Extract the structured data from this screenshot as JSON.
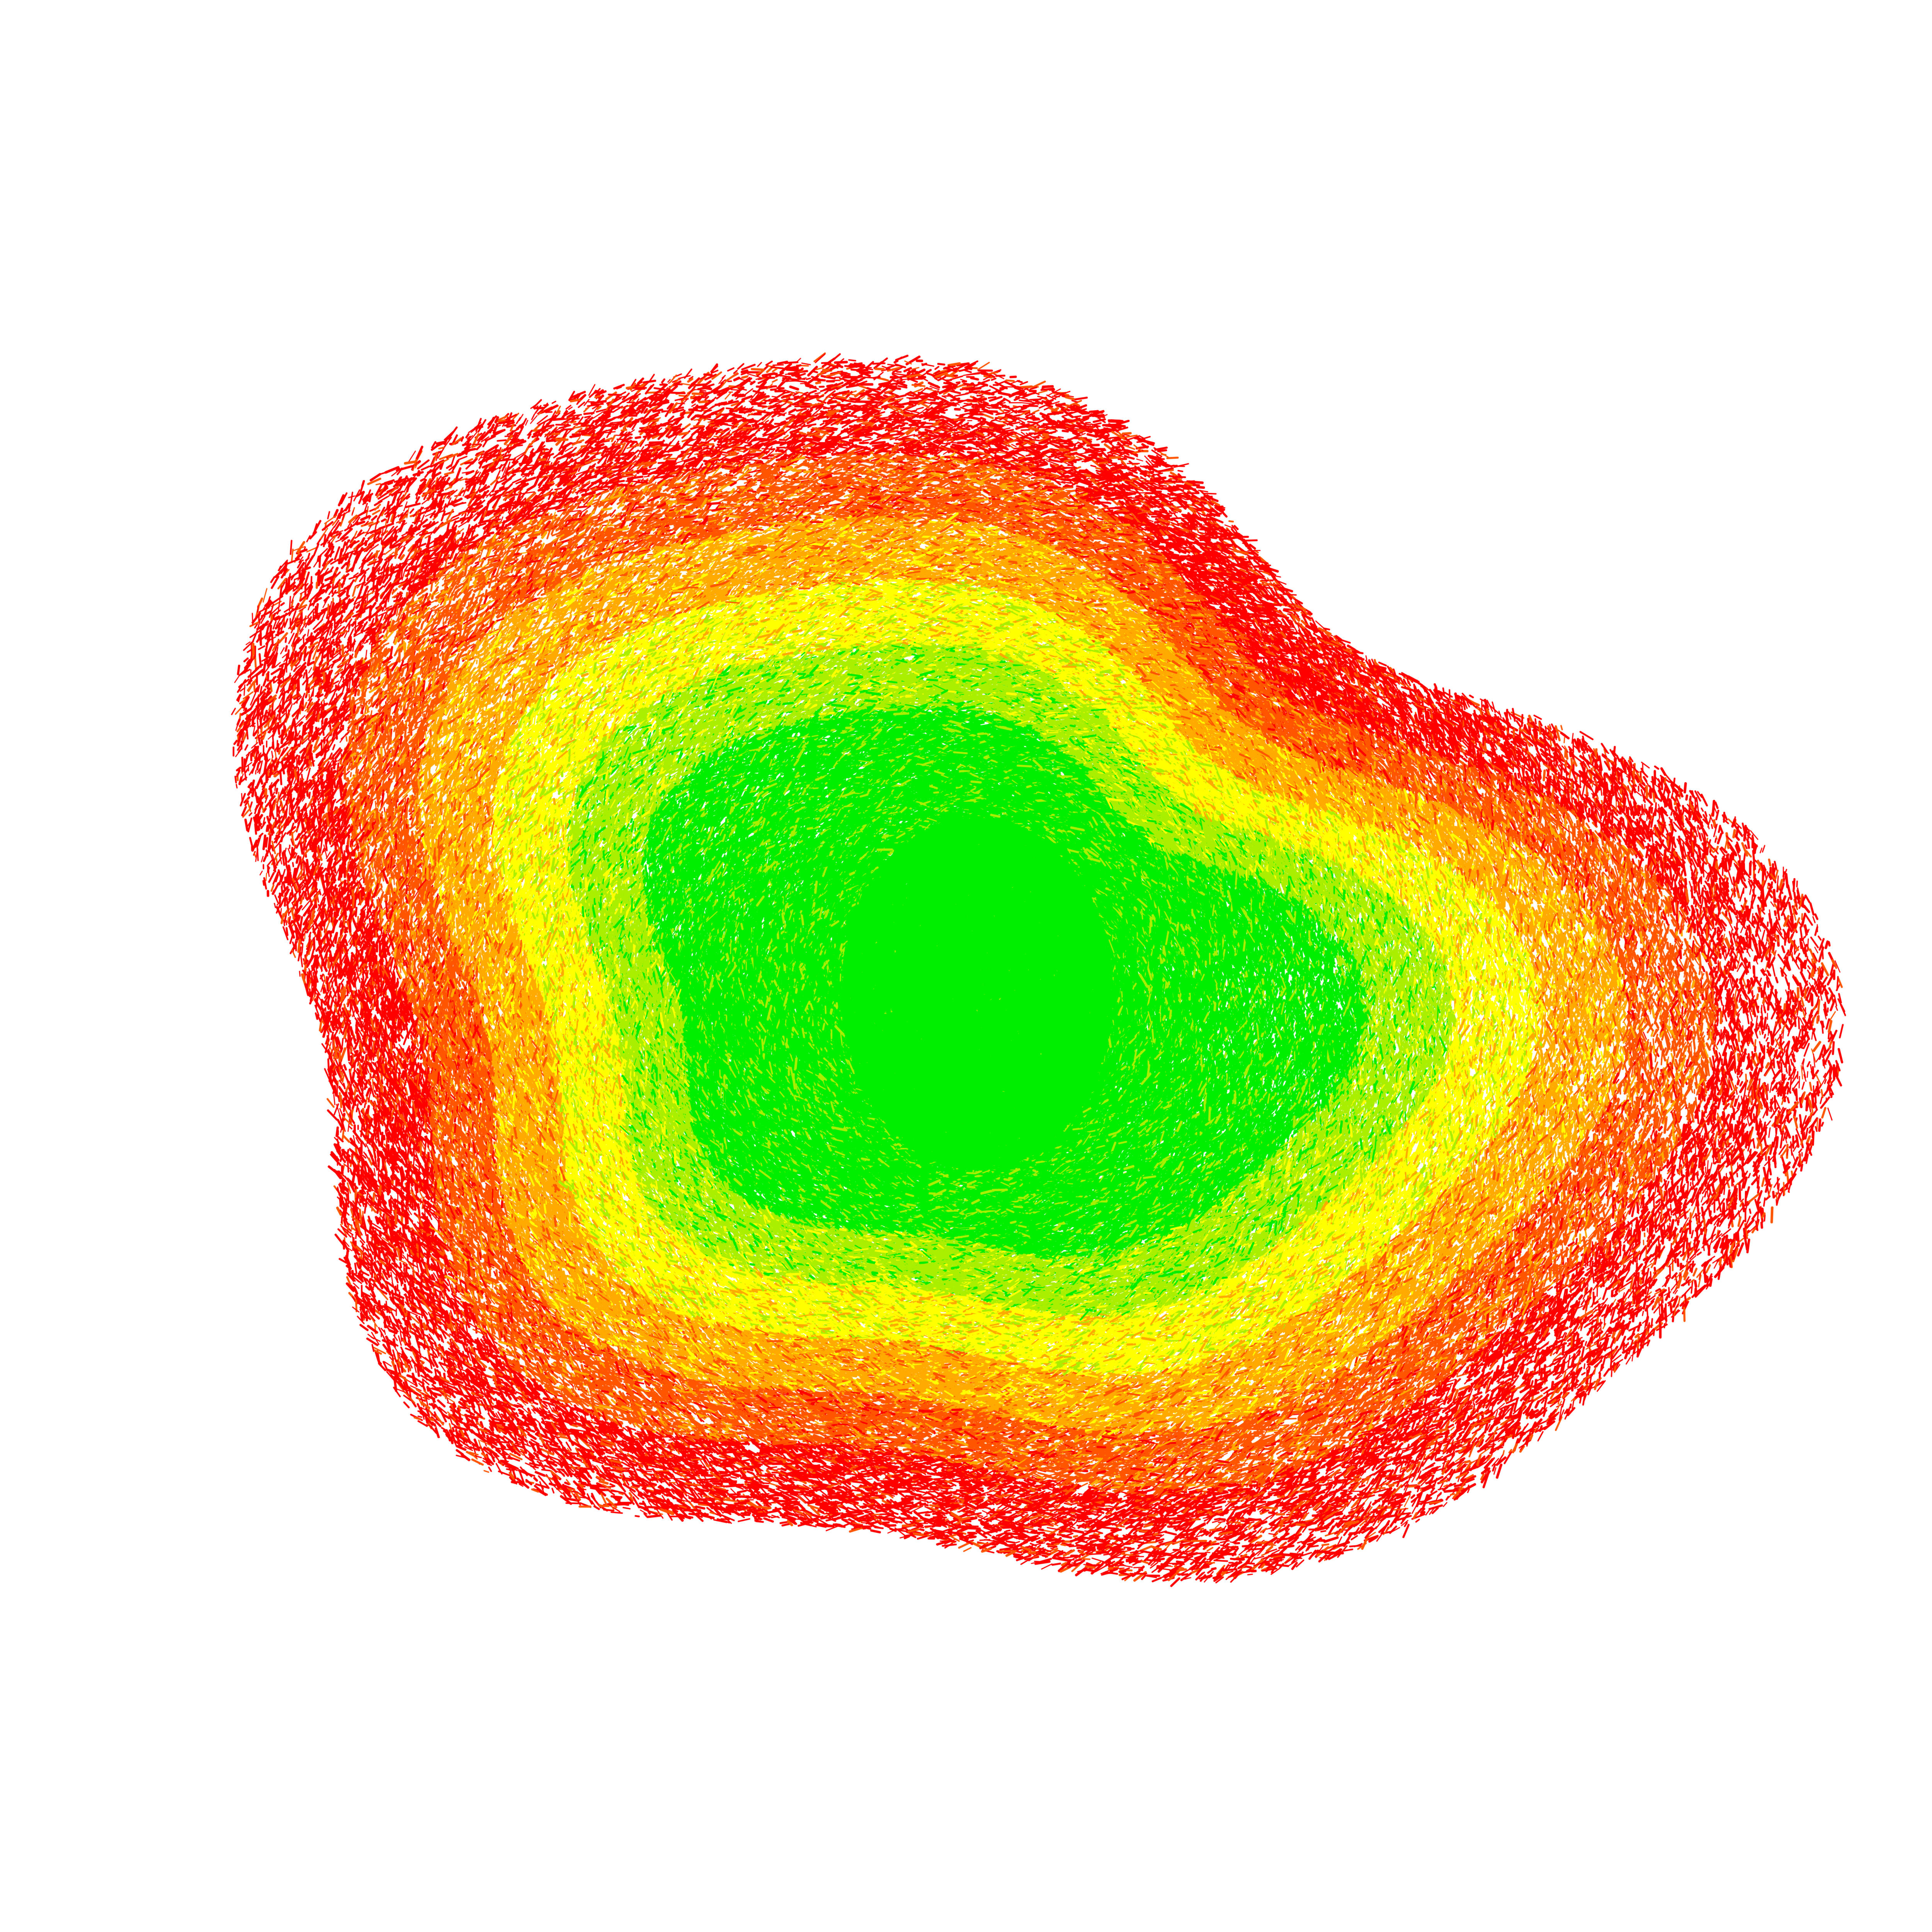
{
  "map": {
    "background": "#ffffff",
    "color_ramp": [
      "#00ee00",
      "#aaee00",
      "#ffff00",
      "#ffaa00",
      "#ff5500",
      "#ff0000"
    ],
    "style": "raster terrain coverage, green center fading to red at edges"
  }
}
